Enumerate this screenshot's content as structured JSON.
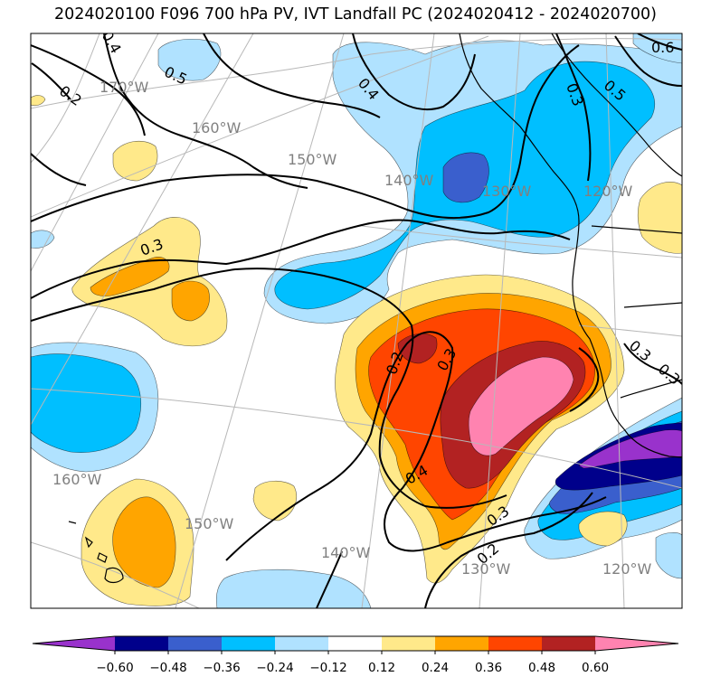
{
  "title": "2024020100 F096 700 hPa PV, IVT Landfall PC (2024020412 - 2024020700)",
  "colors": {
    "c_m072": "#9932cc",
    "c_m060": "#00008b",
    "c_m048": "#3a5fcd",
    "c_m036": "#00bfff",
    "c_m024": "#b0e2ff",
    "c_zero": "#ffffff",
    "c_p012": "#ffe98a",
    "c_p024": "#ffa500",
    "c_p036": "#ff4500",
    "c_p048": "#b22222",
    "c_p060": "#ff83b0",
    "land_line": "#000000",
    "graticule": "#b8b8b8"
  },
  "graticule_labels": {
    "top_row": [
      "170°W",
      "160°W",
      "150°W",
      "140°W",
      "130°W",
      "120°W"
    ],
    "bottom_row": [
      "160°W",
      "150°W",
      "140°W",
      "130°W",
      "120°W"
    ]
  },
  "contour_labels": [
    "0.4",
    "0.5",
    "0.2",
    "0.3",
    "0.4",
    "0.5",
    "0.6",
    "0.3",
    "0.2",
    "0.3",
    "0.3",
    "0.4",
    "0.3",
    "0.2",
    "0.3"
  ],
  "colorbar": {
    "ticks": [
      "−0.60",
      "−0.48",
      "−0.36",
      "−0.24",
      "−0.12",
      "0.12",
      "0.24",
      "0.36",
      "0.48",
      "0.60"
    ]
  },
  "chart_data": {
    "type": "heatmap",
    "title": "2024020100 F096 700 hPa PV, IVT Landfall PC (2024020412 - 2024020700)",
    "colorbar_levels": [
      -0.72,
      -0.6,
      -0.48,
      -0.36,
      -0.24,
      -0.12,
      0.12,
      0.24,
      0.36,
      0.48,
      0.6,
      0.72
    ],
    "colorbar_tick_labels": [
      "−0.60",
      "−0.48",
      "−0.36",
      "−0.24",
      "−0.12",
      "0.12",
      "0.24",
      "0.36",
      "0.48",
      "0.60"
    ],
    "contour_levels_pv": [
      0.2,
      0.3,
      0.4,
      0.5,
      0.6
    ],
    "colorbar_extend": "both",
    "colorbar_location": "bottom"
  }
}
